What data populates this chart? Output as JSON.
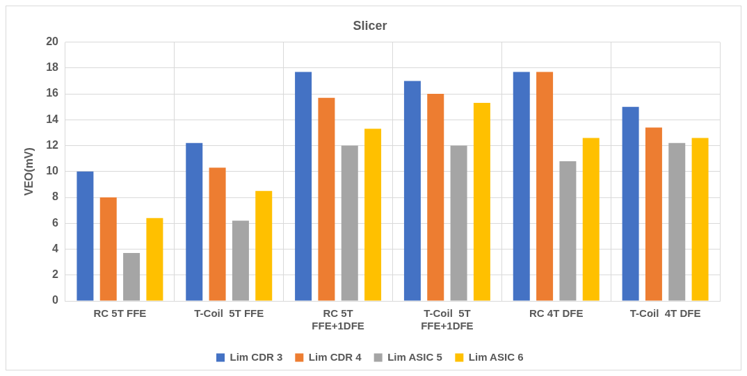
{
  "chart_data": {
    "type": "bar",
    "title": "Slicer",
    "ylabel": "VEO(mV)",
    "categories": [
      "RC 5T FFE",
      "T-Coil  5T FFE",
      "RC 5T\nFFE+1DFE",
      "T-Coil  5T\nFFE+1DFE",
      "RC 4T DFE",
      "T-Coil  4T DFE"
    ],
    "series": [
      {
        "name": "Lim CDR 3",
        "color": "#4472c4",
        "values": [
          10,
          12.2,
          17.7,
          17,
          17.7,
          15
        ]
      },
      {
        "name": "Lim CDR 4",
        "color": "#ed7d31",
        "values": [
          8,
          10.3,
          15.7,
          16,
          17.7,
          13.4
        ]
      },
      {
        "name": "Lim ASIC 5",
        "color": "#a5a5a5",
        "values": [
          3.7,
          6.2,
          12,
          12,
          10.8,
          12.2
        ]
      },
      {
        "name": "Lim ASIC 6",
        "color": "#ffc000",
        "values": [
          6.4,
          8.5,
          13.3,
          15.3,
          12.6,
          12.6
        ]
      }
    ],
    "ylim": [
      0,
      20
    ],
    "yticks": [
      0,
      2,
      4,
      6,
      8,
      10,
      12,
      14,
      16,
      18,
      20
    ],
    "grid": true,
    "legend": "bottom"
  }
}
